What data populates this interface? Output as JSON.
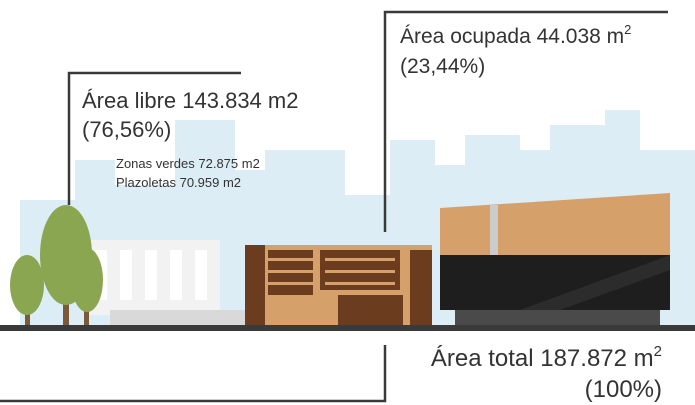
{
  "free_area": {
    "label": "Área libre 143.834 m2",
    "percent": "(76,56%)",
    "details": [
      "Zonas verdes 72.875 m2",
      "Plazoletas 70.959 m2"
    ]
  },
  "occupied_area": {
    "label": "Área ocupada 44.038 m",
    "label_sup": "2",
    "percent": "(23,44%)"
  },
  "total_area": {
    "label": "Área total 187.872 m",
    "label_sup": "2",
    "percent": "(100%)"
  }
}
